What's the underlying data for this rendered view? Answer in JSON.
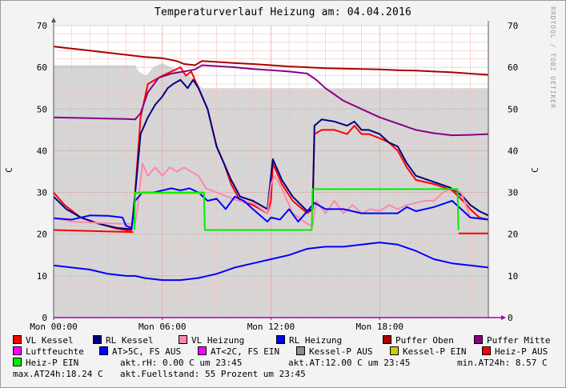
{
  "chart_data": {
    "type": "line",
    "title": "Temperaturverlauf Heizung am: 04.04.2016",
    "ylabel": "C",
    "ylabel_right": "C",
    "credit": "RRDTOOL / TOBI OETIKER",
    "ylim": [
      0,
      70
    ],
    "xlim_hours": [
      0,
      24
    ],
    "y_ticks": [
      0,
      10,
      20,
      30,
      40,
      50,
      60,
      70
    ],
    "x_ticks": [
      {
        "hour": 0,
        "label": "Mon 00:00"
      },
      {
        "hour": 6,
        "label": "Mon 06:00"
      },
      {
        "hour": 12,
        "label": "Mon 12:00"
      },
      {
        "hour": 18,
        "label": "Mon 18:00"
      }
    ],
    "grid": true,
    "legend_position": "bottom",
    "series": [
      {
        "name": "VL Kessel",
        "color": "#ff0000",
        "kind": "line",
        "points": [
          [
            0,
            30
          ],
          [
            0.6,
            27
          ],
          [
            1.5,
            24
          ],
          [
            2.5,
            22.5
          ],
          [
            3.5,
            21.3
          ],
          [
            4.2,
            20.8
          ],
          [
            4.3,
            21
          ],
          [
            4.5,
            30
          ],
          [
            4.8,
            48
          ],
          [
            5.2,
            56
          ],
          [
            5.6,
            57
          ],
          [
            6,
            58
          ],
          [
            6.5,
            59
          ],
          [
            7,
            60
          ],
          [
            7.3,
            58
          ],
          [
            7.6,
            59
          ],
          [
            8,
            55
          ],
          [
            8.5,
            50
          ],
          [
            9,
            41
          ],
          [
            9.4,
            37
          ],
          [
            9.8,
            32
          ],
          [
            10.3,
            28
          ],
          [
            11,
            27
          ],
          [
            11.8,
            25
          ],
          [
            12,
            28
          ],
          [
            12.1,
            37
          ],
          [
            12.6,
            32
          ],
          [
            13.2,
            28
          ],
          [
            14,
            25
          ],
          [
            14.3,
            26
          ],
          [
            14.4,
            44
          ],
          [
            14.8,
            45
          ],
          [
            15.5,
            45
          ],
          [
            16.2,
            44
          ],
          [
            16.6,
            46
          ],
          [
            17,
            44
          ],
          [
            17.4,
            44
          ],
          [
            18,
            43
          ],
          [
            18.5,
            42
          ],
          [
            19,
            40
          ],
          [
            19.5,
            36
          ],
          [
            20,
            33
          ],
          [
            21,
            32
          ],
          [
            22,
            30.5
          ],
          [
            22.6,
            28
          ],
          [
            23,
            26
          ],
          [
            23.5,
            24
          ],
          [
            24,
            23.5
          ]
        ]
      },
      {
        "name": "RL Kessel",
        "color": "#00007f",
        "kind": "line",
        "points": [
          [
            0,
            29
          ],
          [
            0.7,
            26
          ],
          [
            1.5,
            24
          ],
          [
            2.5,
            22.5
          ],
          [
            3.5,
            21.5
          ],
          [
            4.3,
            21.2
          ],
          [
            4.4,
            25
          ],
          [
            4.8,
            44
          ],
          [
            5.2,
            48
          ],
          [
            5.6,
            51
          ],
          [
            6,
            53
          ],
          [
            6.3,
            55
          ],
          [
            6.6,
            56
          ],
          [
            7,
            57
          ],
          [
            7.4,
            55
          ],
          [
            7.7,
            57
          ],
          [
            8,
            55
          ],
          [
            8.5,
            50
          ],
          [
            9,
            41
          ],
          [
            9.4,
            37
          ],
          [
            9.8,
            33
          ],
          [
            10.3,
            29
          ],
          [
            11,
            28
          ],
          [
            11.8,
            26
          ],
          [
            12,
            34
          ],
          [
            12.1,
            38
          ],
          [
            12.6,
            33
          ],
          [
            13.2,
            29
          ],
          [
            14,
            25.5
          ],
          [
            14.3,
            26
          ],
          [
            14.4,
            46
          ],
          [
            14.8,
            47.5
          ],
          [
            15.5,
            47
          ],
          [
            16.2,
            46
          ],
          [
            16.6,
            47
          ],
          [
            17,
            45
          ],
          [
            17.4,
            45
          ],
          [
            18,
            44
          ],
          [
            18.5,
            42
          ],
          [
            19,
            41
          ],
          [
            19.5,
            37
          ],
          [
            20,
            34
          ],
          [
            21,
            32.5
          ],
          [
            22,
            31
          ],
          [
            22.6,
            29
          ],
          [
            23,
            27
          ],
          [
            23.5,
            25.5
          ],
          [
            24,
            24.5
          ]
        ]
      },
      {
        "name": "VL Heizung",
        "color": "#ff88aa",
        "kind": "line",
        "points": [
          [
            0,
            24
          ],
          [
            1,
            23
          ],
          [
            2,
            22.8
          ],
          [
            3,
            22.6
          ],
          [
            4,
            22.5
          ],
          [
            4.5,
            22.5
          ],
          [
            4.6,
            25
          ],
          [
            4.9,
            37
          ],
          [
            5.2,
            34
          ],
          [
            5.6,
            36
          ],
          [
            6,
            34
          ],
          [
            6.4,
            36
          ],
          [
            6.8,
            35
          ],
          [
            7.2,
            36
          ],
          [
            7.6,
            35
          ],
          [
            8,
            34
          ],
          [
            8.4,
            31
          ],
          [
            9,
            30
          ],
          [
            9.6,
            29
          ],
          [
            10.2,
            28
          ],
          [
            11,
            27.5
          ],
          [
            11.8,
            25
          ],
          [
            12,
            32
          ],
          [
            12.2,
            34
          ],
          [
            12.6,
            31
          ],
          [
            13.2,
            25
          ],
          [
            14,
            22.5
          ],
          [
            14.3,
            22
          ],
          [
            14.5,
            28
          ],
          [
            15,
            25
          ],
          [
            15.5,
            28
          ],
          [
            16,
            25
          ],
          [
            16.5,
            27
          ],
          [
            17,
            25
          ],
          [
            17.5,
            26
          ],
          [
            18,
            25.5
          ],
          [
            18.5,
            27
          ],
          [
            19,
            26
          ],
          [
            19.5,
            27
          ],
          [
            20,
            27.5
          ],
          [
            20.5,
            28
          ],
          [
            21,
            28
          ],
          [
            21.5,
            30
          ],
          [
            22,
            31
          ],
          [
            22.5,
            30
          ],
          [
            23,
            24
          ],
          [
            24,
            23.5
          ]
        ]
      },
      {
        "name": "RL Heizung",
        "color": "#0000ff",
        "kind": "line",
        "points": [
          [
            0,
            23.8
          ],
          [
            1,
            23.5
          ],
          [
            2,
            24.5
          ],
          [
            3,
            24.4
          ],
          [
            3.8,
            24
          ],
          [
            4,
            22
          ],
          [
            4.3,
            21.5
          ],
          [
            4.5,
            28
          ],
          [
            4.9,
            30
          ],
          [
            5.5,
            30
          ],
          [
            6,
            30.5
          ],
          [
            6.5,
            31
          ],
          [
            7,
            30.5
          ],
          [
            7.5,
            31
          ],
          [
            8,
            30
          ],
          [
            8.5,
            28
          ],
          [
            9,
            28.5
          ],
          [
            9.5,
            26
          ],
          [
            10,
            29
          ],
          [
            10.5,
            28
          ],
          [
            11,
            26
          ],
          [
            11.8,
            23
          ],
          [
            12,
            24
          ],
          [
            12.5,
            23.5
          ],
          [
            13,
            26
          ],
          [
            13.5,
            23
          ],
          [
            14,
            25.5
          ],
          [
            14.4,
            27.5
          ],
          [
            15,
            26
          ],
          [
            16,
            26
          ],
          [
            17,
            25
          ],
          [
            18,
            25
          ],
          [
            19,
            25
          ],
          [
            19.5,
            26.5
          ],
          [
            20,
            25.5
          ],
          [
            21,
            26.5
          ],
          [
            22,
            28
          ],
          [
            22.5,
            26
          ],
          [
            23,
            24
          ],
          [
            24,
            23.5
          ]
        ]
      },
      {
        "name": "Puffer Oben",
        "color": "#aa0000",
        "kind": "line",
        "points": [
          [
            0,
            65
          ],
          [
            1,
            64.5
          ],
          [
            2,
            64
          ],
          [
            3,
            63.5
          ],
          [
            4,
            63
          ],
          [
            5,
            62.5
          ],
          [
            6,
            62.2
          ],
          [
            6.8,
            61.5
          ],
          [
            7.2,
            60.8
          ],
          [
            7.8,
            60.5
          ],
          [
            8.2,
            61.5
          ],
          [
            9,
            61.3
          ],
          [
            10,
            61
          ],
          [
            11,
            60.8
          ],
          [
            12,
            60.5
          ],
          [
            13,
            60.2
          ],
          [
            14,
            60
          ],
          [
            15,
            59.8
          ],
          [
            16,
            59.7
          ],
          [
            17,
            59.6
          ],
          [
            18,
            59.5
          ],
          [
            19,
            59.3
          ],
          [
            20,
            59.2
          ],
          [
            21,
            59
          ],
          [
            22,
            58.8
          ],
          [
            23,
            58.5
          ],
          [
            24,
            58.2
          ]
        ]
      },
      {
        "name": "Puffer Mitte",
        "color": "#880088",
        "kind": "line",
        "points": [
          [
            0,
            48
          ],
          [
            1,
            47.9
          ],
          [
            2,
            47.8
          ],
          [
            3,
            47.7
          ],
          [
            4,
            47.6
          ],
          [
            4.5,
            47.5
          ],
          [
            4.8,
            49
          ],
          [
            5.2,
            54
          ],
          [
            5.8,
            57.5
          ],
          [
            6.5,
            58.5
          ],
          [
            7.2,
            59
          ],
          [
            7.8,
            59.5
          ],
          [
            8.2,
            60.5
          ],
          [
            9,
            60.3
          ],
          [
            10,
            60
          ],
          [
            11,
            59.6
          ],
          [
            12,
            59.3
          ],
          [
            13,
            59
          ],
          [
            14,
            58.5
          ],
          [
            14.5,
            57
          ],
          [
            15,
            55
          ],
          [
            15.5,
            53.5
          ],
          [
            16,
            52
          ],
          [
            17,
            50
          ],
          [
            18,
            48
          ],
          [
            19,
            46.5
          ],
          [
            20,
            45
          ],
          [
            21,
            44.2
          ],
          [
            22,
            43.7
          ],
          [
            23,
            43.8
          ],
          [
            24,
            44
          ]
        ]
      },
      {
        "name": "Luftfeuchte",
        "color": "#ff00ff",
        "kind": "line",
        "points": []
      },
      {
        "name": "AT>5C, FS AUS",
        "color": "#0000ff",
        "kind": "line",
        "points": [
          [
            0,
            12.5
          ],
          [
            1,
            12
          ],
          [
            2,
            11.5
          ],
          [
            3,
            10.5
          ],
          [
            4,
            10
          ],
          [
            4.5,
            10
          ],
          [
            5,
            9.5
          ],
          [
            6,
            9
          ],
          [
            7,
            9
          ],
          [
            8,
            9.5
          ],
          [
            9,
            10.5
          ],
          [
            10,
            12
          ],
          [
            11,
            13
          ],
          [
            12,
            14
          ],
          [
            13,
            15
          ],
          [
            14,
            16.5
          ],
          [
            15,
            17
          ],
          [
            16,
            17
          ],
          [
            17,
            17.5
          ],
          [
            18,
            18
          ],
          [
            19,
            17.5
          ],
          [
            20,
            16
          ],
          [
            21,
            14
          ],
          [
            22,
            13
          ],
          [
            23,
            12.5
          ],
          [
            24,
            12
          ]
        ]
      },
      {
        "name": "AT<2C, FS EIN",
        "color": "#ff00ff",
        "kind": "line",
        "points": []
      },
      {
        "name": "Kessel-P AUS",
        "color": "#8c8c8c",
        "kind": "area",
        "points": [
          [
            0,
            60.5
          ],
          [
            4.5,
            60.5
          ],
          [
            4.7,
            59
          ],
          [
            5.1,
            58
          ],
          [
            5.5,
            60
          ],
          [
            6,
            61
          ],
          [
            6.5,
            60
          ],
          [
            7.5,
            58
          ],
          [
            8.2,
            55
          ],
          [
            12,
            55
          ],
          [
            14,
            55
          ],
          [
            24,
            55
          ]
        ]
      },
      {
        "name": "Kessel-P EIN",
        "color": "#cccc00",
        "kind": "line",
        "points": [
          [
            0,
            null
          ],
          [
            4.35,
            null
          ],
          [
            4.4,
            29.8
          ],
          [
            8.3,
            29.8
          ],
          [
            8.35,
            null
          ]
        ]
      },
      {
        "name": "Heiz-P AUS",
        "color": "#ff0000",
        "kind": "line",
        "points": [
          [
            0,
            21
          ],
          [
            4.4,
            20.5
          ],
          [
            4.45,
            null
          ],
          [
            8.35,
            null
          ],
          [
            8.4,
            21
          ],
          [
            14.2,
            21
          ],
          [
            14.25,
            null
          ],
          [
            22.3,
            null
          ],
          [
            22.35,
            20.2
          ],
          [
            24,
            20.2
          ]
        ]
      },
      {
        "name": "Heiz-P EIN",
        "color": "#00ee00",
        "kind": "line",
        "points": [
          [
            4.45,
            21
          ],
          [
            4.5,
            30
          ],
          [
            8.3,
            30
          ],
          [
            8.35,
            21
          ],
          [
            14.25,
            21
          ],
          [
            14.3,
            30.8
          ],
          [
            22.3,
            30.8
          ],
          [
            22.35,
            21
          ]
        ]
      }
    ]
  },
  "stats": {
    "line1": "akt.rH: 0.00 C um 23:45",
    "line2": "akt.AT:12.00 C um 23:45",
    "line3": "min.AT24h: 8.57 C",
    "line4": "max.AT24h:18.24 C",
    "line5": "akt.Fuellstand:   55 Prozent um 23:45"
  }
}
